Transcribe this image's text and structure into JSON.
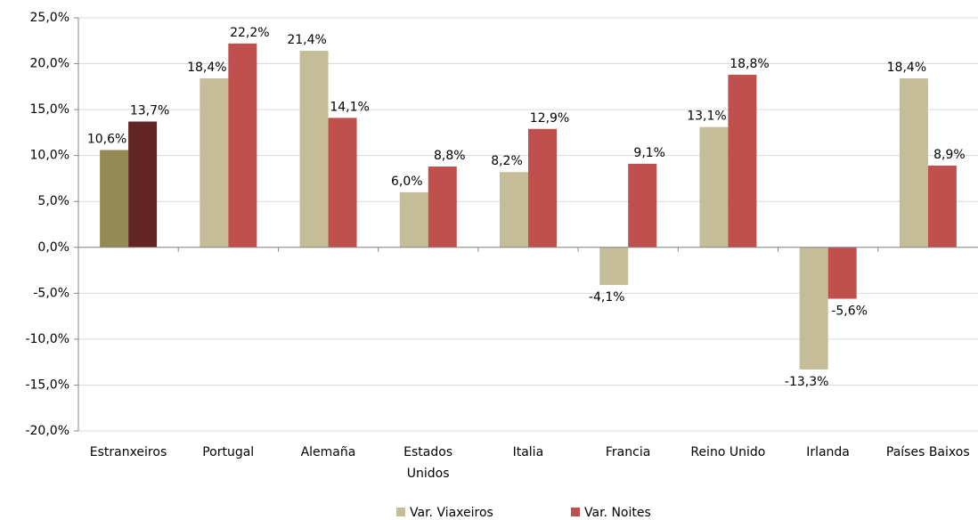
{
  "chart_data": {
    "type": "bar",
    "categories": [
      "Estranxeiros",
      "Portugal",
      "Alemaña",
      "Estados\nUnidos",
      "Italia",
      "Francia",
      "Reino Unido",
      "Irlanda",
      "Países Baixos"
    ],
    "series": [
      {
        "name": "Var. Viaxeiros",
        "color": "#c4bd97",
        "colors": [
          "#948a54",
          "#c4bd97",
          "#c4bd97",
          "#c4bd97",
          "#c4bd97",
          "#c4bd97",
          "#c4bd97",
          "#c4bd97",
          "#c4bd97"
        ],
        "values": [
          10.6,
          18.4,
          21.4,
          6.0,
          8.2,
          -4.1,
          13.1,
          -13.3,
          18.4
        ],
        "value_labels": [
          "10,6%",
          "18,4%",
          "21,4%",
          "6,0%",
          "8,2%",
          "-4,1%",
          "13,1%",
          "-13,3%",
          "18,4%"
        ]
      },
      {
        "name": "Var. Noites",
        "color": "#c0504d",
        "colors": [
          "#632523",
          "#c0504d",
          "#c0504d",
          "#c0504d",
          "#c0504d",
          "#c0504d",
          "#c0504d",
          "#c0504d",
          "#c0504d"
        ],
        "values": [
          13.7,
          22.2,
          14.1,
          8.8,
          12.9,
          9.1,
          18.8,
          -5.6,
          8.9
        ],
        "value_labels": [
          "13,7%",
          "22,2%",
          "14,1%",
          "8,8%",
          "12,9%",
          "9,1%",
          "18,8%",
          "-5,6%",
          "8,9%"
        ]
      }
    ],
    "ylim": [
      -20,
      25
    ],
    "yticks": [
      {
        "value": -20,
        "label": "-20,0%"
      },
      {
        "value": -15,
        "label": "-15,0%"
      },
      {
        "value": -10,
        "label": "-10,0%"
      },
      {
        "value": -5,
        "label": "-5,0%"
      },
      {
        "value": 0,
        "label": "0,0%"
      },
      {
        "value": 5,
        "label": "5,0%"
      },
      {
        "value": 10,
        "label": "10,0%"
      },
      {
        "value": 15,
        "label": "15,0%"
      },
      {
        "value": 20,
        "label": "20,0%"
      },
      {
        "value": 25,
        "label": "25,0%"
      }
    ],
    "grid": true,
    "legend": "bottom"
  }
}
